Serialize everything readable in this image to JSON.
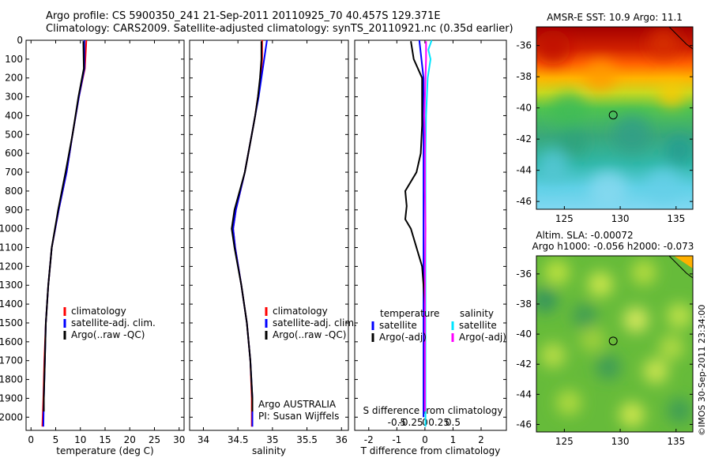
{
  "header": {
    "line1": "Argo profile: CS 5900350_241 21-Sep-2011 20110925_70 40.457S 129.371E",
    "line2": "Climatology: CARS2009. Satellite-adjusted climatology: synTS_20110921.nc (0.35d earlier)"
  },
  "colors": {
    "climatology": "#ff0000",
    "satellite": "#0000ff",
    "argo": "#000000",
    "sat_diff": "#00e5ff",
    "argo_sal_diff": "#ff00ff"
  },
  "credit": "©IMOS 30-Sep-2011 23:34:00",
  "chart_data": [
    {
      "type": "line",
      "name": "temperature",
      "xlabel": "temperature (deg C)",
      "ylabel": "",
      "xlim": [
        -1,
        31
      ],
      "ylim": [
        2070,
        0
      ],
      "xticks": [
        "0",
        "5",
        "10",
        "15",
        "20",
        "25",
        "30"
      ],
      "yticks": [
        "0",
        "100",
        "200",
        "300",
        "400",
        "500",
        "600",
        "700",
        "800",
        "900",
        "1000",
        "1100",
        "1200",
        "1300",
        "1400",
        "1500",
        "1600",
        "1700",
        "1800",
        "1900",
        "2000"
      ],
      "legend": [
        "climatology",
        "satellite-adj. clim.",
        "Argo(..raw -QC)"
      ],
      "series": [
        {
          "name": "climatology",
          "color": "#ff0000",
          "depth": [
            0,
            150,
            300,
            500,
            700,
            900,
            1100,
            1300,
            1500,
            1700,
            1900,
            2050
          ],
          "values": [
            11.2,
            10.9,
            9.7,
            8.4,
            7.2,
            5.6,
            4.2,
            3.5,
            3.0,
            2.7,
            2.5,
            2.3
          ]
        },
        {
          "name": "satellite-adj. clim.",
          "color": "#0000ff",
          "depth": [
            0,
            150,
            300,
            500,
            700,
            900,
            1100,
            1300,
            1500,
            1700,
            1900,
            2050
          ],
          "values": [
            10.8,
            10.8,
            9.7,
            8.4,
            7.2,
            5.6,
            4.2,
            3.5,
            3.0,
            2.8,
            2.6,
            2.5
          ]
        },
        {
          "name": "Argo(..raw -QC)",
          "color": "#000000",
          "depth": [
            5,
            150,
            300,
            500,
            700,
            900,
            1100,
            1300,
            1500,
            1700,
            1900,
            1970
          ],
          "values": [
            10.6,
            10.7,
            9.6,
            8.4,
            7.0,
            5.5,
            4.2,
            3.5,
            3.0,
            2.8,
            2.6,
            2.6
          ]
        }
      ]
    },
    {
      "type": "line",
      "name": "salinity",
      "xlabel": "salinity",
      "ylabel": "",
      "xlim": [
        33.8,
        36.1
      ],
      "ylim": [
        2070,
        0
      ],
      "xticks": [
        "34",
        "34.5",
        "35",
        "35.5",
        "36"
      ],
      "legend": [
        "climatology",
        "satellite-adj. clim.",
        "Argo(..raw -QC)"
      ],
      "annotation": [
        "Argo AUSTRALIA",
        "PI: Susan Wijffels"
      ],
      "series": [
        {
          "name": "climatology",
          "color": "#ff0000",
          "depth": [
            0,
            100,
            200,
            300,
            400,
            500,
            700,
            900,
            1000,
            1100,
            1300,
            1500,
            1700,
            1900,
            2050
          ],
          "values": [
            34.85,
            34.85,
            34.83,
            34.79,
            34.75,
            34.7,
            34.6,
            34.47,
            34.43,
            34.46,
            34.55,
            34.63,
            34.68,
            34.7,
            34.7
          ]
        },
        {
          "name": "satellite-adj. clim.",
          "color": "#0000ff",
          "depth": [
            0,
            100,
            200,
            300,
            400,
            500,
            700,
            900,
            1000,
            1100,
            1300,
            1500,
            1700,
            1900,
            2050
          ],
          "values": [
            34.92,
            34.88,
            34.84,
            34.8,
            34.75,
            34.7,
            34.6,
            34.47,
            34.43,
            34.46,
            34.55,
            34.63,
            34.68,
            34.71,
            34.71
          ]
        },
        {
          "name": "Argo(..raw -QC)",
          "color": "#000000",
          "depth": [
            5,
            100,
            200,
            300,
            400,
            500,
            700,
            900,
            1000,
            1100,
            1300,
            1500,
            1700,
            1900,
            1970
          ],
          "values": [
            34.84,
            34.84,
            34.82,
            34.79,
            34.75,
            34.7,
            34.6,
            34.45,
            34.41,
            34.45,
            34.55,
            34.63,
            34.68,
            34.71,
            34.71
          ]
        }
      ]
    },
    {
      "type": "line",
      "name": "differences",
      "xlabel": "T difference from climatology",
      "x2label": "S difference from climatology",
      "xlim": [
        -2.5,
        2.9
      ],
      "ylim": [
        2070,
        0
      ],
      "xticks": [
        "-2",
        "-1",
        "0",
        "1",
        "2"
      ],
      "x2ticks": [
        "-0.5",
        "-0.25",
        "0",
        "0.25",
        "0.5"
      ],
      "legend": [
        [
          "temperature",
          "satellite",
          "Argo(-adj)"
        ],
        [
          "salinity",
          "satellite",
          "Argo(-adj)"
        ]
      ],
      "series": [
        {
          "name": "temperature satellite",
          "color": "#0000ff",
          "depth": [
            0,
            200,
            400,
            600,
            800,
            1000,
            1200,
            1400,
            1600,
            1800,
            2000
          ],
          "values": [
            -0.2,
            -0.05,
            -0.05,
            -0.05,
            -0.05,
            -0.05,
            -0.05,
            -0.05,
            -0.05,
            -0.05,
            -0.05
          ]
        },
        {
          "name": "temperature Argo(-adj)",
          "color": "#000000",
          "depth": [
            5,
            100,
            200,
            300,
            450,
            600,
            700,
            800,
            880,
            950,
            1000,
            1100,
            1200,
            1400,
            1600,
            1800,
            1970
          ],
          "values": [
            -0.5,
            -0.4,
            -0.1,
            -0.1,
            -0.1,
            -0.15,
            -0.3,
            -0.7,
            -0.65,
            -0.7,
            -0.5,
            -0.3,
            -0.1,
            0,
            0,
            0,
            0
          ]
        },
        {
          "name": "salinity satellite",
          "color": "#00e5ff",
          "depth": [
            0,
            50,
            100,
            200,
            400,
            600,
            800,
            1000,
            1400,
            1800,
            2050
          ],
          "values": [
            0.12,
            0.06,
            0.1,
            0.05,
            0.02,
            0.01,
            0.01,
            0.01,
            0.01,
            0.01,
            0.01
          ]
        },
        {
          "name": "salinity Argo(-adj)",
          "color": "#ff00ff",
          "depth": [
            5,
            100,
            200,
            300,
            400,
            500,
            600,
            800,
            1000,
            1200,
            1400,
            1600,
            1800,
            1970
          ],
          "values": [
            0.02,
            0.02,
            0.01,
            0.0,
            -0.01,
            0.0,
            0.0,
            0.0,
            0.01,
            0.0,
            0.0,
            0.0,
            0.0,
            0.0
          ]
        }
      ]
    },
    {
      "type": "heatmap",
      "name": "sst-map",
      "title": "AMSR-E SST: 10.9 Argo: 11.1",
      "xlim": [
        122.5,
        136.5
      ],
      "ylim": [
        -46.5,
        -34.8
      ],
      "xticks": [
        "125",
        "130",
        "135"
      ],
      "yticks": [
        "-36",
        "-38",
        "-40",
        "-42",
        "-44",
        "-46"
      ],
      "bands": [
        "#a50000",
        "#d02000",
        "#ff6000",
        "#ffb400",
        "#c8d820",
        "#4fc34f",
        "#22aa88",
        "#3cc8c8",
        "#7ad8f0"
      ],
      "marker": [
        129.371,
        -40.457
      ]
    },
    {
      "type": "heatmap",
      "name": "sla-map",
      "title": [
        "Altim. SLA: -0.00072",
        "Argo h1000: -0.056 h2000: -0.073"
      ],
      "xlim": [
        122.5,
        136.5
      ],
      "ylim": [
        -46.5,
        -34.8
      ],
      "xticks": [
        "125",
        "130",
        "135"
      ],
      "yticks": [
        "-36",
        "-38",
        "-40",
        "-42",
        "-44",
        "-46"
      ],
      "marker": [
        129.371,
        -40.457
      ]
    }
  ]
}
